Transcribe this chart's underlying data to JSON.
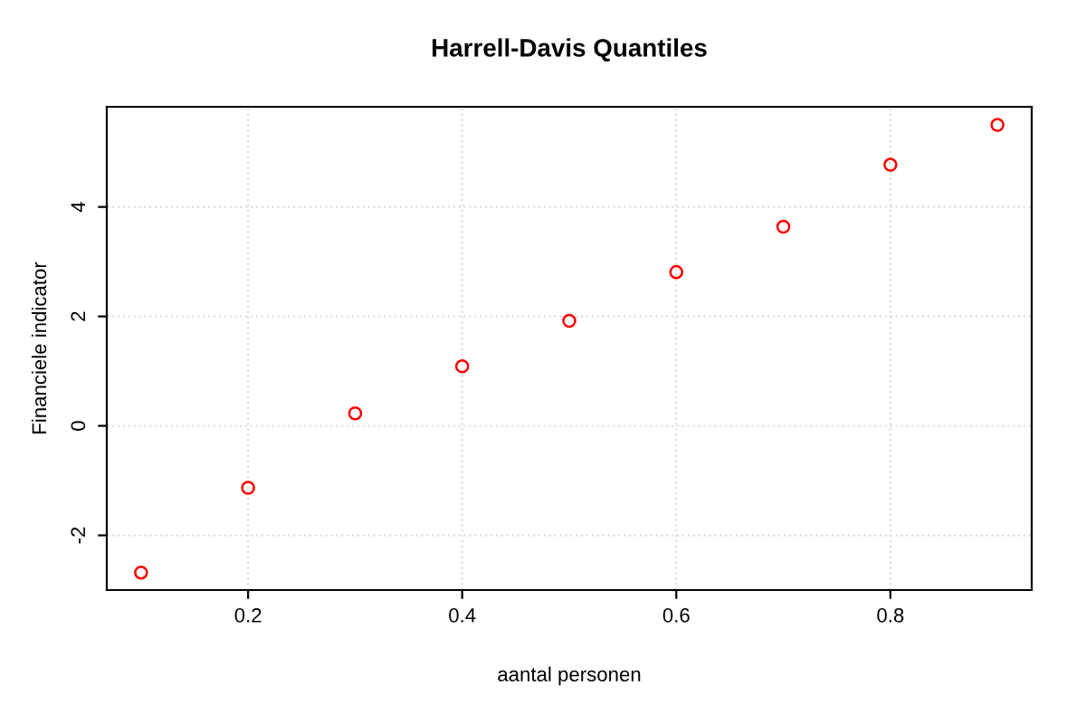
{
  "chart_data": {
    "type": "scatter",
    "title": "Harrell-Davis Quantiles",
    "xlabel": "aantal personen",
    "ylabel": "Financiele indicator",
    "x": [
      0.1,
      0.2,
      0.3,
      0.4,
      0.5,
      0.6,
      0.7,
      0.8,
      0.9
    ],
    "series": [
      {
        "color": "#ff0000",
        "values": [
          -2.68,
          -1.13,
          0.23,
          1.09,
          1.92,
          2.81,
          3.64,
          4.77,
          5.5
        ]
      }
    ],
    "xlim": [
      0.068,
      0.932
    ],
    "ylim": [
      -3.0,
      5.83
    ],
    "xticks": [
      0.2,
      0.4,
      0.6,
      0.8
    ],
    "yticks": [
      -2,
      0,
      2,
      4
    ],
    "grid": true,
    "marker": "circle",
    "legend": false
  }
}
